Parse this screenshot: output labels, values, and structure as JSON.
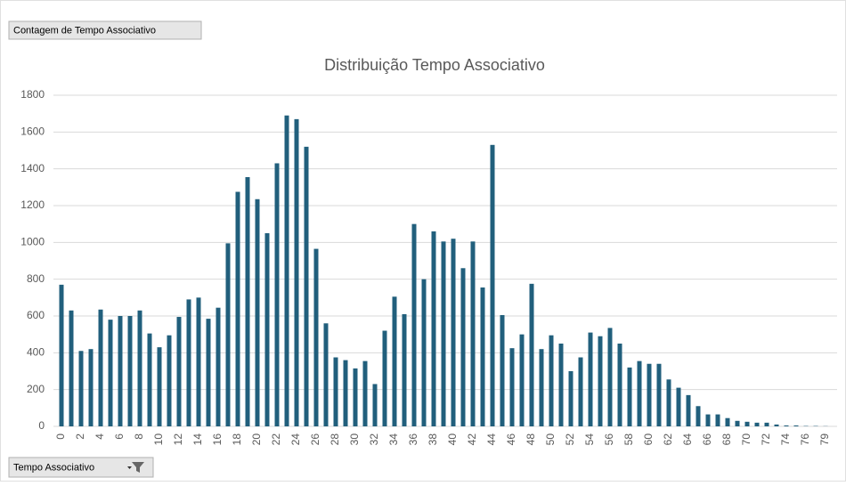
{
  "chart_data": {
    "type": "bar",
    "title": "Distribuição Tempo Associativo",
    "value_field_button": "Contagem de Tempo Associativo",
    "axis_field_button": "Tempo Associativo",
    "categories": [
      "0",
      null,
      "2",
      null,
      "4",
      null,
      "6",
      null,
      "8",
      null,
      "10",
      null,
      "12",
      null,
      "14",
      null,
      "16",
      null,
      "18",
      null,
      "20",
      null,
      "22",
      null,
      "24",
      null,
      "26",
      null,
      "28",
      null,
      "30",
      null,
      "32",
      null,
      "34",
      null,
      "36",
      null,
      "38",
      null,
      "40",
      null,
      "42",
      null,
      "44",
      null,
      "46",
      null,
      "48",
      null,
      "50",
      null,
      "52",
      null,
      "54",
      null,
      "56",
      null,
      "58",
      null,
      "60",
      null,
      "62",
      null,
      "64",
      null,
      "66",
      null,
      "68",
      null,
      "70",
      null,
      "72",
      null,
      "74",
      null,
      "76",
      null,
      "79"
    ],
    "values": [
      770,
      630,
      410,
      420,
      635,
      580,
      600,
      600,
      630,
      505,
      430,
      495,
      595,
      690,
      700,
      585,
      645,
      995,
      1275,
      1355,
      1235,
      1050,
      1430,
      1690,
      1670,
      1520,
      965,
      560,
      375,
      360,
      315,
      355,
      230,
      520,
      705,
      610,
      1100,
      800,
      1060,
      1005,
      1020,
      860,
      1005,
      755,
      1530,
      605,
      425,
      500,
      775,
      420,
      495,
      450,
      300,
      375,
      510,
      490,
      535,
      450,
      320,
      355,
      340,
      340,
      255,
      210,
      170,
      110,
      65,
      65,
      45,
      30,
      25,
      20,
      20,
      10,
      5,
      5,
      2,
      2,
      1
    ],
    "color": "#215f7c",
    "ylim": [
      0,
      1800
    ],
    "yticks": [
      0,
      200,
      400,
      600,
      800,
      1000,
      1200,
      1400,
      1600,
      1800
    ],
    "grid": true
  }
}
